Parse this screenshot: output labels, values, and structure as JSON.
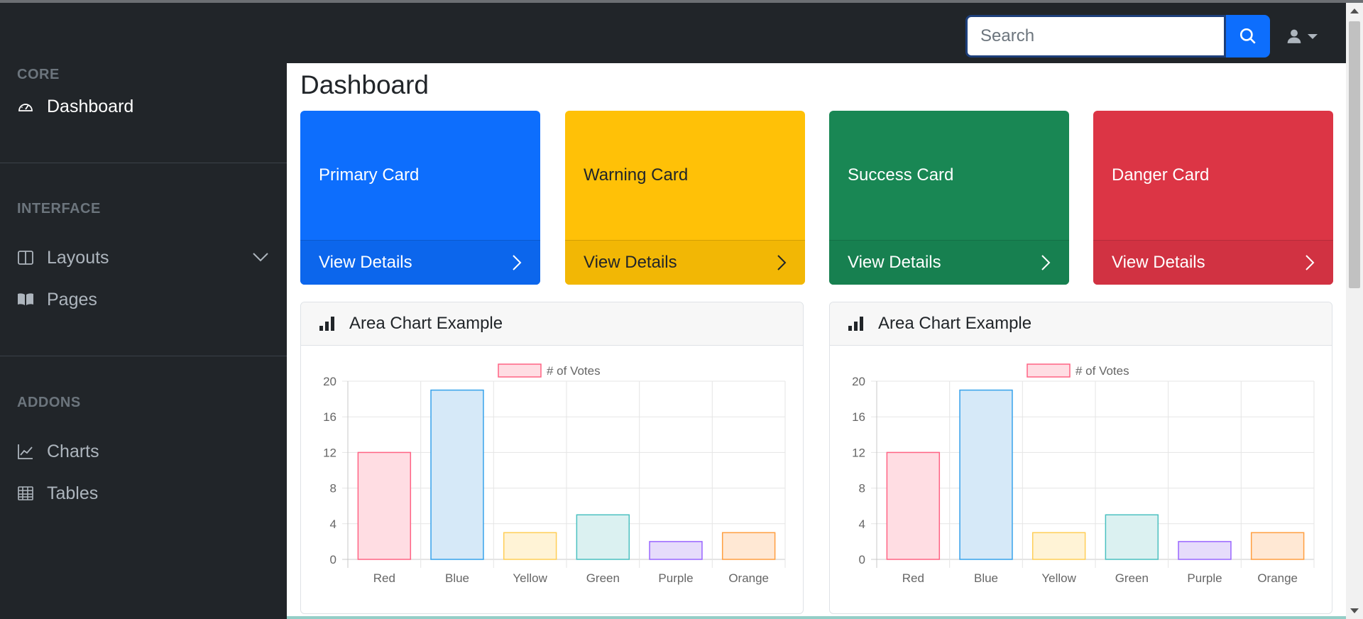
{
  "search": {
    "placeholder": "Search",
    "value": ""
  },
  "user_menu": {
    "icon": "user-icon",
    "caret": "caret-down-icon"
  },
  "sidebar": {
    "sections": [
      {
        "heading": "CORE",
        "items": [
          {
            "label": "Dashboard",
            "icon": "speedometer-icon",
            "active": true
          }
        ]
      },
      {
        "heading": "INTERFACE",
        "items": [
          {
            "label": "Layouts",
            "icon": "columns-icon",
            "expandable": true
          },
          {
            "label": "Pages",
            "icon": "book-icon"
          }
        ]
      },
      {
        "heading": "ADDONS",
        "items": [
          {
            "label": "Charts",
            "icon": "area-chart-icon"
          },
          {
            "label": "Tables",
            "icon": "table-icon"
          }
        ]
      }
    ]
  },
  "page": {
    "title": "Dashboard"
  },
  "cards": [
    {
      "title": "Primary Card",
      "link": "View Details",
      "color": "#0d6efd"
    },
    {
      "title": "Warning Card",
      "link": "View Details",
      "color": "#ffc107"
    },
    {
      "title": "Success Card",
      "link": "View Details",
      "color": "#198754"
    },
    {
      "title": "Danger Card",
      "link": "View Details",
      "color": "#dc3545"
    }
  ],
  "charts": [
    {
      "header": "Area Chart Example",
      "icon": "bar-chart-icon"
    },
    {
      "header": "Area Chart Example",
      "icon": "bar-chart-icon"
    }
  ],
  "chart_data": [
    {
      "type": "bar",
      "categories": [
        "Red",
        "Blue",
        "Yellow",
        "Green",
        "Purple",
        "Orange"
      ],
      "series": [
        {
          "name": "# of Votes",
          "values": [
            12,
            19,
            3,
            5,
            2,
            3
          ]
        }
      ],
      "ylim": [
        0,
        20
      ],
      "yticks": [
        0,
        4,
        8,
        12,
        16,
        20
      ],
      "grid": true,
      "legend": "top",
      "fill_colors": [
        "#ffdde3",
        "#d6e9f8",
        "#fff3d6",
        "#dbf1f1",
        "#e6dcfb",
        "#ffe8d4"
      ],
      "border_colors": [
        "#ff6384",
        "#36a2eb",
        "#ffce56",
        "#4bc0c0",
        "#9966ff",
        "#ff9f40"
      ]
    },
    {
      "type": "bar",
      "categories": [
        "Red",
        "Blue",
        "Yellow",
        "Green",
        "Purple",
        "Orange"
      ],
      "series": [
        {
          "name": "# of Votes",
          "values": [
            12,
            19,
            3,
            5,
            2,
            3
          ]
        }
      ],
      "ylim": [
        0,
        20
      ],
      "yticks": [
        0,
        4,
        8,
        12,
        16,
        20
      ],
      "grid": true,
      "legend": "top",
      "fill_colors": [
        "#ffdde3",
        "#d6e9f8",
        "#fff3d6",
        "#dbf1f1",
        "#e6dcfb",
        "#ffe8d4"
      ],
      "border_colors": [
        "#ff6384",
        "#36a2eb",
        "#ffce56",
        "#4bc0c0",
        "#9966ff",
        "#ff9f40"
      ]
    }
  ]
}
